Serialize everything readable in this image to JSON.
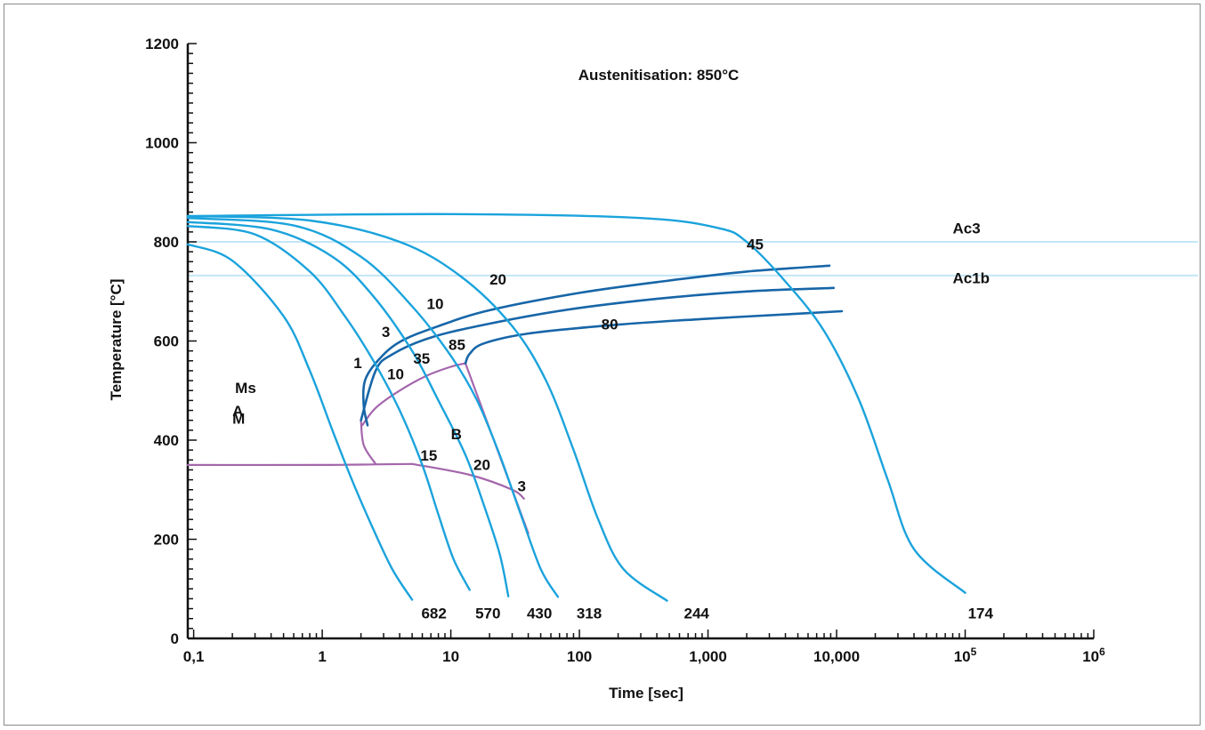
{
  "chart_data": {
    "type": "line",
    "title": "Austenitisation: 850°C",
    "xlabel": "Time [sec]",
    "ylabel": "Temperature [°C]",
    "x_scale": "log",
    "xlim": [
      0.09,
      1000000
    ],
    "ylim": [
      0,
      1200
    ],
    "x_ticks": [
      {
        "value": 0.1,
        "label": "0,1"
      },
      {
        "value": 1,
        "label": "1"
      },
      {
        "value": 10,
        "label": "10"
      },
      {
        "value": 100,
        "label": "100"
      },
      {
        "value": 1000,
        "label": "1,000"
      },
      {
        "value": 10000,
        "label": "10,000"
      },
      {
        "value": 100000,
        "label": "10",
        "sup": "5"
      },
      {
        "value": 1000000,
        "label": "10",
        "sup": "6"
      }
    ],
    "y_ticks": [
      {
        "value": 0,
        "label": "0"
      },
      {
        "value": 200,
        "label": "200"
      },
      {
        "value": 400,
        "label": "400"
      },
      {
        "value": 600,
        "label": "600"
      },
      {
        "value": 800,
        "label": "800"
      },
      {
        "value": 1000,
        "label": "1000"
      },
      {
        "value": 1200,
        "label": "1200"
      }
    ],
    "reference_lines": [
      {
        "name": "Ac3",
        "y": 800,
        "color": "#c3e6f7"
      },
      {
        "name": "Ac1b",
        "y": 732,
        "color": "#c3e6f7"
      }
    ],
    "colors": {
      "cooling": "#1ba3dc",
      "transformation": "#1766a8",
      "phase_boundary": "#a466ac",
      "text": "#111111"
    },
    "cooling_curves": [
      {
        "hardness": "682",
        "points": [
          [
            0.09,
            795
          ],
          [
            0.2,
            762
          ],
          [
            0.5,
            650
          ],
          [
            0.8,
            540
          ],
          [
            1.2,
            420
          ],
          [
            1.7,
            320
          ],
          [
            2.4,
            230
          ],
          [
            3.5,
            140
          ],
          [
            5.0,
            78
          ]
        ]
      },
      {
        "hardness": "570",
        "points": [
          [
            0.09,
            832
          ],
          [
            0.3,
            815
          ],
          [
            0.8,
            740
          ],
          [
            1.5,
            650
          ],
          [
            2.5,
            560
          ],
          [
            4.0,
            460
          ],
          [
            6.0,
            350
          ],
          [
            8.0,
            250
          ],
          [
            10.5,
            160
          ],
          [
            14.0,
            98
          ]
        ]
      },
      {
        "hardness": "430",
        "points": [
          [
            0.09,
            840
          ],
          [
            0.4,
            825
          ],
          [
            1.2,
            770
          ],
          [
            2.5,
            690
          ],
          [
            5.0,
            580
          ],
          [
            8.0,
            480
          ],
          [
            13.0,
            370
          ],
          [
            18.0,
            270
          ],
          [
            24.0,
            170
          ],
          [
            28.0,
            85
          ]
        ]
      },
      {
        "hardness": "318",
        "points": [
          [
            0.09,
            848
          ],
          [
            0.6,
            833
          ],
          [
            2.0,
            770
          ],
          [
            5.0,
            670
          ],
          [
            10.0,
            570
          ],
          [
            16.0,
            480
          ],
          [
            24.0,
            370
          ],
          [
            35.0,
            250
          ],
          [
            50.0,
            140
          ],
          [
            68.0,
            84
          ]
        ]
      },
      {
        "hardness": "244",
        "points": [
          [
            0.09,
            852
          ],
          [
            0.8,
            843
          ],
          [
            4.0,
            800
          ],
          [
            12.0,
            730
          ],
          [
            30.0,
            630
          ],
          [
            55.0,
            520
          ],
          [
            90.0,
            380
          ],
          [
            140.0,
            240
          ],
          [
            220.0,
            140
          ],
          [
            480.0,
            76
          ]
        ]
      },
      {
        "hardness": "174",
        "points": [
          [
            0.09,
            852
          ],
          [
            10.0,
            856
          ],
          [
            300.0,
            848
          ],
          [
            1200.0,
            828
          ],
          [
            2000.0,
            800
          ],
          [
            4000.0,
            720
          ],
          [
            8000.0,
            620
          ],
          [
            15000.0,
            480
          ],
          [
            25000.0,
            320
          ],
          [
            40000.0,
            180
          ],
          [
            100000.0,
            92
          ]
        ]
      }
    ],
    "transformation_curves": [
      {
        "points": [
          [
            2.25,
            430
          ],
          [
            2.1,
            470
          ],
          [
            2.15,
            520
          ],
          [
            2.7,
            560
          ],
          [
            4.0,
            598
          ],
          [
            8.0,
            630
          ],
          [
            20.0,
            662
          ],
          [
            100.0,
            697
          ],
          [
            500.0,
            722
          ],
          [
            2000.0,
            740
          ],
          [
            8800.0,
            752
          ]
        ]
      },
      {
        "points": [
          [
            2.0,
            440
          ],
          [
            2.6,
            540
          ],
          [
            3.5,
            573
          ],
          [
            7.0,
            607
          ],
          [
            20.0,
            635
          ],
          [
            80.0,
            663
          ],
          [
            400.0,
            685
          ],
          [
            2000.0,
            700
          ],
          [
            9500.0,
            707
          ]
        ]
      },
      {
        "points": [
          [
            13.0,
            555
          ],
          [
            14.0,
            574
          ],
          [
            18.0,
            595
          ],
          [
            40.0,
            615
          ],
          [
            200.0,
            633
          ],
          [
            1000.0,
            645
          ],
          [
            5000.0,
            655
          ],
          [
            11000.0,
            660
          ]
        ]
      }
    ],
    "phase_boundaries": [
      {
        "points": [
          [
            0.09,
            350
          ],
          [
            1.0,
            350
          ],
          [
            2.5,
            351
          ],
          [
            5.0,
            352
          ]
        ]
      },
      {
        "points": [
          [
            5.0,
            352
          ],
          [
            14.0,
            330
          ],
          [
            30.0,
            300
          ],
          [
            37.0,
            282
          ]
        ]
      },
      {
        "points": [
          [
            2.6,
            352
          ],
          [
            2.1,
            390
          ],
          [
            2.0,
            440
          ]
        ]
      },
      {
        "points": [
          [
            2.05,
            430
          ],
          [
            2.6,
            465
          ],
          [
            4.0,
            500
          ],
          [
            6.5,
            530
          ],
          [
            10.0,
            548
          ],
          [
            13.0,
            555
          ]
        ]
      },
      {
        "points": [
          [
            13.0,
            555
          ],
          [
            40.0,
            212
          ]
        ]
      }
    ],
    "annotations": [
      {
        "text": "Ac3",
        "x": 80000,
        "y": 817
      },
      {
        "text": "Ac1b",
        "x": 80000,
        "y": 717
      },
      {
        "text": "A",
        "x": 0.2,
        "y": 448
      },
      {
        "text": "Ms",
        "x": 0.21,
        "y": 495
      },
      {
        "text": "M",
        "x": 0.2,
        "y": 433
      },
      {
        "text": "B",
        "x": 10,
        "y": 402
      },
      {
        "text": "1",
        "x": 1.75,
        "y": 545
      },
      {
        "text": "3",
        "x": 2.9,
        "y": 608
      },
      {
        "text": "10",
        "x": 6.5,
        "y": 665
      },
      {
        "text": "20",
        "x": 20,
        "y": 714
      },
      {
        "text": "45",
        "x": 2000,
        "y": 785
      },
      {
        "text": "80",
        "x": 148,
        "y": 623
      },
      {
        "text": "35",
        "x": 5.1,
        "y": 554
      },
      {
        "text": "10",
        "x": 3.2,
        "y": 523
      },
      {
        "text": "85",
        "x": 9.6,
        "y": 582
      },
      {
        "text": "15",
        "x": 5.8,
        "y": 359
      },
      {
        "text": "20",
        "x": 15,
        "y": 340
      },
      {
        "text": "3",
        "x": 33,
        "y": 297
      },
      {
        "text": "682",
        "x": 5.9,
        "y": 40
      },
      {
        "text": "570",
        "x": 15.5,
        "y": 40
      },
      {
        "text": "430",
        "x": 39,
        "y": 40
      },
      {
        "text": "318",
        "x": 95,
        "y": 40
      },
      {
        "text": "244",
        "x": 650,
        "y": 40
      },
      {
        "text": "174",
        "x": 105000,
        "y": 40
      }
    ]
  }
}
